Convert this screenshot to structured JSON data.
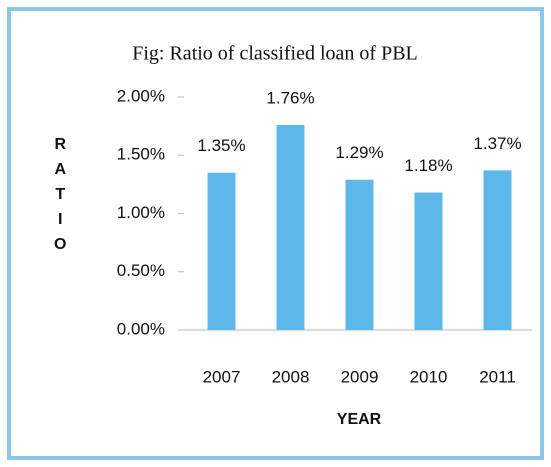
{
  "chart_data": {
    "type": "bar",
    "title": "Fig: Ratio of classified loan of PBL",
    "x_label": "YEAR",
    "y_label": "RATIO",
    "categories": [
      "2007",
      "2008",
      "2009",
      "2010",
      "2011"
    ],
    "values": [
      1.35,
      1.76,
      1.29,
      1.18,
      1.37
    ],
    "value_labels": [
      "1.35%",
      "1.76%",
      "1.29%",
      "1.18%",
      "1.37%"
    ],
    "color": "#5bb8e8",
    "ylim": [
      0,
      2
    ],
    "yticks": [
      {
        "value": 0,
        "label": "0.00%"
      },
      {
        "value": 0.5,
        "label": "0.50%"
      },
      {
        "value": 1,
        "label": "1.00%"
      },
      {
        "value": 1.5,
        "label": "1.50%"
      },
      {
        "value": 2,
        "label": "2.00%"
      }
    ],
    "grid": false
  }
}
